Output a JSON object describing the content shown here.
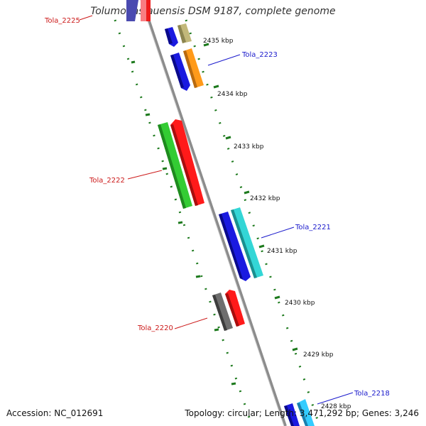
{
  "title": "Tolumonas auensis DSM 9187, complete genome",
  "footer": {
    "accession": "Accession: NC_012691",
    "topology": "Topology: circular; Length: 3,471,292 bp; Genes: 3,246"
  },
  "colors": {
    "backbone": "#8c8c8c",
    "tick": "#1d7a1d",
    "label_forward": "#1a1acc",
    "label_reverse": "#cc1a1a"
  },
  "kbp_labels": [
    "2435 kbp",
    "2434 kbp",
    "2433 kbp",
    "2432 kbp",
    "2431 kbp",
    "2430 kbp",
    "2429 kbp",
    "2428 kbp"
  ],
  "gene_labels": [
    {
      "text": "Tola_2225",
      "strand": "reverse"
    },
    {
      "text": "Tola_2223",
      "strand": "forward"
    },
    {
      "text": "Tola_2222",
      "strand": "reverse"
    },
    {
      "text": "Tola_2221",
      "strand": "forward"
    },
    {
      "text": "Tola_2220",
      "strand": "reverse"
    },
    {
      "text": "Tola_2218",
      "strand": "forward"
    }
  ]
}
